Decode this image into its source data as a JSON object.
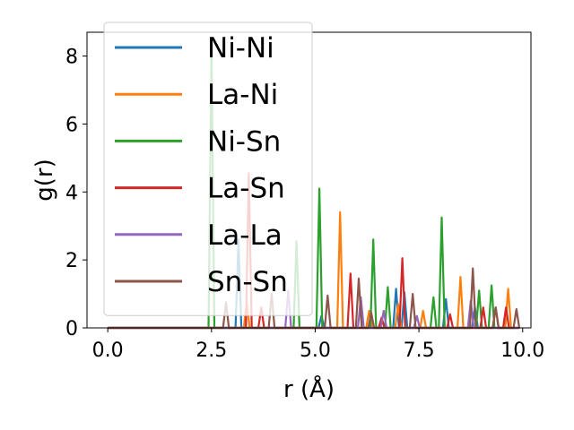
{
  "chart_data": {
    "type": "line",
    "title": "",
    "xlabel": "r (Å)",
    "ylabel": "g(r)",
    "xlim": [
      -0.5,
      10.2
    ],
    "ylim": [
      0,
      8.7
    ],
    "xticks": [
      0.0,
      2.5,
      5.0,
      7.5,
      10.0
    ],
    "xtick_labels": [
      "0.0",
      "2.5",
      "5.0",
      "7.5",
      "10.0"
    ],
    "yticks": [
      0,
      2,
      4,
      6,
      8
    ],
    "ytick_labels": [
      "0",
      "2",
      "4",
      "6",
      "8"
    ],
    "grid": false,
    "legend_position": "top-left",
    "series": [
      {
        "name": "Ni-Ni",
        "color": "#1f77b4",
        "peaks": [
          [
            3.15,
            2.6
          ],
          [
            5.15,
            0.35
          ],
          [
            6.95,
            1.15
          ],
          [
            7.15,
            1.05
          ],
          [
            8.15,
            0.85
          ],
          [
            8.85,
            0.6
          ]
        ]
      },
      {
        "name": "La-Ni",
        "color": "#ff7f0e",
        "peaks": [
          [
            3.35,
            0.8
          ],
          [
            5.6,
            3.4
          ],
          [
            6.3,
            0.5
          ],
          [
            7.0,
            0.7
          ],
          [
            7.6,
            0.5
          ],
          [
            8.5,
            1.5
          ],
          [
            9.65,
            1.15
          ]
        ]
      },
      {
        "name": "Ni-Sn",
        "color": "#2ca02c",
        "peaks": [
          [
            2.5,
            8.3
          ],
          [
            4.55,
            2.55
          ],
          [
            5.1,
            4.1
          ],
          [
            6.4,
            2.6
          ],
          [
            6.75,
            1.2
          ],
          [
            7.85,
            0.9
          ],
          [
            8.05,
            3.25
          ],
          [
            8.95,
            1.1
          ],
          [
            9.25,
            1.25
          ]
        ]
      },
      {
        "name": "La-Sn",
        "color": "#d62728",
        "peaks": [
          [
            3.4,
            4.55
          ],
          [
            3.7,
            0.6
          ],
          [
            5.85,
            1.6
          ],
          [
            6.6,
            0.3
          ],
          [
            7.1,
            2.05
          ],
          [
            8.25,
            0.4
          ],
          [
            9.05,
            0.6
          ],
          [
            9.35,
            0.6
          ],
          [
            9.6,
            0.6
          ]
        ]
      },
      {
        "name": "La-La",
        "color": "#9467bd",
        "peaks": [
          [
            4.35,
            1.1
          ],
          [
            6.1,
            0.9
          ],
          [
            6.65,
            0.5
          ],
          [
            7.45,
            0.35
          ],
          [
            8.75,
            0.8
          ]
        ]
      },
      {
        "name": "Sn-Sn",
        "color": "#8c564b",
        "peaks": [
          [
            2.85,
            0.75
          ],
          [
            3.95,
            1.0
          ],
          [
            5.3,
            0.95
          ],
          [
            6.05,
            1.45
          ],
          [
            6.35,
            0.45
          ],
          [
            7.35,
            1.0
          ],
          [
            8.8,
            1.75
          ],
          [
            9.35,
            0.6
          ],
          [
            9.85,
            0.55
          ]
        ]
      }
    ]
  }
}
